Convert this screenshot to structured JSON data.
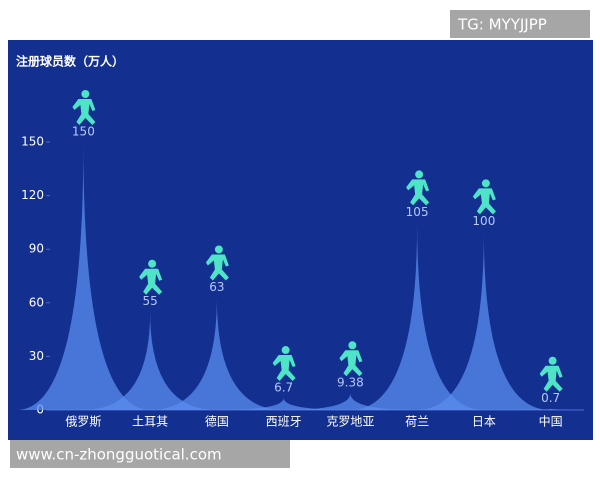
{
  "watermark_top": "TG: MYYJJPP",
  "watermark_bottom": "www.cn-zhongguotical.com",
  "chart_data": {
    "type": "pictorial-spike",
    "y_label": "注册球员数（万人）",
    "categories": [
      "俄罗斯",
      "土耳其",
      "德国",
      "西班牙",
      "克罗地亚",
      "荷兰",
      "日本",
      "中国"
    ],
    "values": [
      150,
      55,
      63,
      6.7,
      9.38,
      105,
      100,
      0.7
    ],
    "color": "#5a8ef0",
    "icon_color": "#4fe3c8",
    "ylim": [
      0,
      150
    ],
    "yticks": [
      0,
      30,
      60,
      90,
      120,
      150
    ]
  }
}
